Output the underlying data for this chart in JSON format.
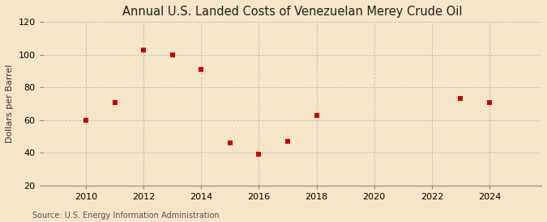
{
  "title": "Annual U.S. Landed Costs of Venezuelan Merey Crude Oil",
  "ylabel": "Dollars per Barrel",
  "source": "Source: U.S. Energy Information Administration",
  "years": [
    2010,
    2011,
    2012,
    2013,
    2014,
    2015,
    2016,
    2017,
    2018,
    2023,
    2024
  ],
  "values": [
    60,
    71,
    103,
    100,
    91,
    46,
    39,
    47,
    63,
    73,
    71
  ],
  "marker_color": "#cc0000",
  "marker_size": 5,
  "background_color": "#f5e6c8",
  "grid_color": "#bbbbbb",
  "xlim": [
    2008.5,
    2025.8
  ],
  "ylim": [
    20,
    120
  ],
  "yticks": [
    20,
    40,
    60,
    80,
    100,
    120
  ],
  "xticks": [
    2010,
    2012,
    2014,
    2016,
    2018,
    2020,
    2022,
    2024
  ],
  "title_fontsize": 10.5,
  "label_fontsize": 8,
  "tick_fontsize": 8,
  "source_fontsize": 7
}
